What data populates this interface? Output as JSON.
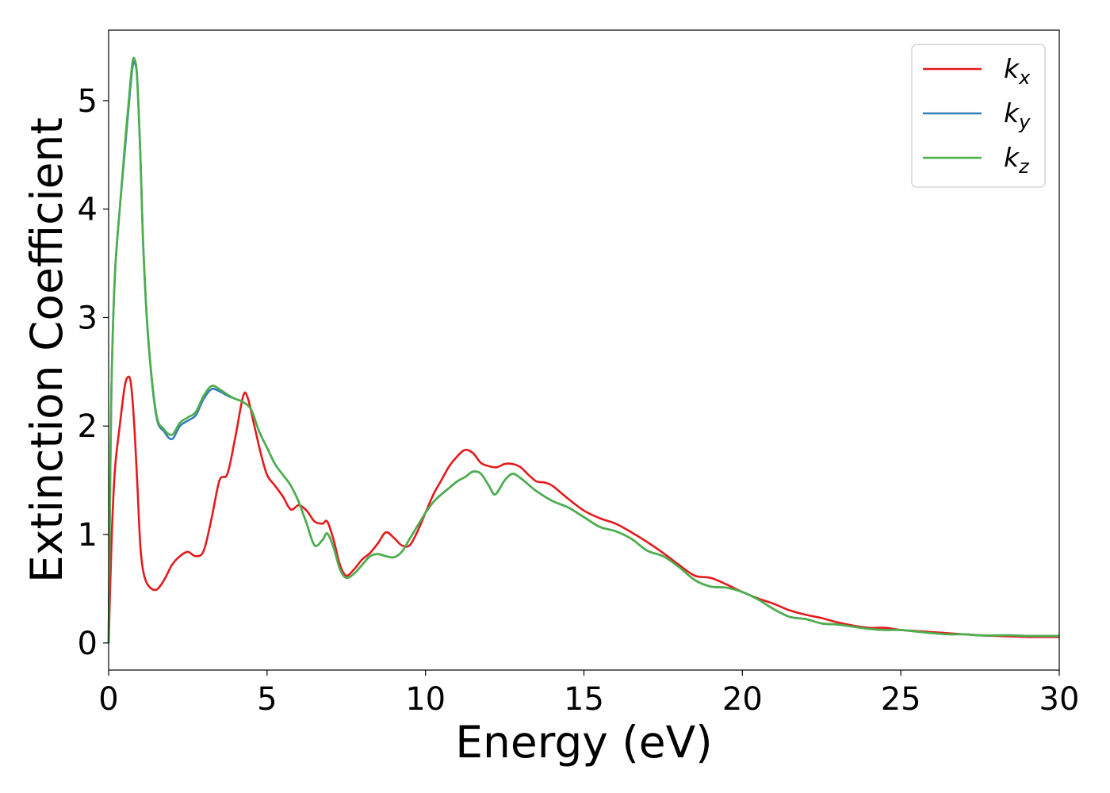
{
  "chart_data": {
    "type": "line",
    "title": "",
    "xlabel": "Energy (eV)",
    "ylabel": "Extinction Coefficient",
    "xlim": [
      0,
      30
    ],
    "ylim": [
      -0.25,
      5.65
    ],
    "xticks": [
      0,
      5,
      10,
      15,
      20,
      25,
      30
    ],
    "yticks": [
      0,
      1,
      2,
      3,
      4,
      5
    ],
    "grid": false,
    "legend_position": "top-right",
    "series": [
      {
        "name": "k",
        "subscript": "x",
        "color": "#e41a1c",
        "points": [
          [
            0,
            0
          ],
          [
            0.1,
            1.0
          ],
          [
            0.2,
            1.6
          ],
          [
            0.35,
            2.0
          ],
          [
            0.5,
            2.35
          ],
          [
            0.6,
            2.45
          ],
          [
            0.7,
            2.4
          ],
          [
            0.8,
            2.05
          ],
          [
            0.9,
            1.5
          ],
          [
            1.0,
            0.9
          ],
          [
            1.1,
            0.65
          ],
          [
            1.25,
            0.53
          ],
          [
            1.5,
            0.49
          ],
          [
            1.75,
            0.58
          ],
          [
            2.0,
            0.72
          ],
          [
            2.25,
            0.8
          ],
          [
            2.5,
            0.84
          ],
          [
            2.75,
            0.8
          ],
          [
            3.0,
            0.85
          ],
          [
            3.25,
            1.15
          ],
          [
            3.5,
            1.5
          ],
          [
            3.75,
            1.56
          ],
          [
            4.0,
            1.9
          ],
          [
            4.25,
            2.28
          ],
          [
            4.4,
            2.25
          ],
          [
            4.6,
            2.0
          ],
          [
            4.8,
            1.75
          ],
          [
            5.0,
            1.55
          ],
          [
            5.25,
            1.45
          ],
          [
            5.5,
            1.35
          ],
          [
            5.75,
            1.23
          ],
          [
            6.0,
            1.27
          ],
          [
            6.25,
            1.22
          ],
          [
            6.5,
            1.12
          ],
          [
            6.75,
            1.1
          ],
          [
            6.9,
            1.12
          ],
          [
            7.1,
            0.95
          ],
          [
            7.3,
            0.72
          ],
          [
            7.5,
            0.62
          ],
          [
            7.75,
            0.68
          ],
          [
            8.0,
            0.77
          ],
          [
            8.25,
            0.83
          ],
          [
            8.5,
            0.92
          ],
          [
            8.75,
            1.02
          ],
          [
            9.0,
            0.97
          ],
          [
            9.25,
            0.9
          ],
          [
            9.5,
            0.9
          ],
          [
            9.75,
            1.03
          ],
          [
            10.0,
            1.2
          ],
          [
            10.25,
            1.37
          ],
          [
            10.5,
            1.5
          ],
          [
            10.75,
            1.63
          ],
          [
            11.0,
            1.72
          ],
          [
            11.25,
            1.78
          ],
          [
            11.5,
            1.75
          ],
          [
            11.75,
            1.66
          ],
          [
            12.0,
            1.63
          ],
          [
            12.25,
            1.62
          ],
          [
            12.5,
            1.65
          ],
          [
            12.75,
            1.65
          ],
          [
            13.0,
            1.62
          ],
          [
            13.25,
            1.55
          ],
          [
            13.5,
            1.49
          ],
          [
            13.75,
            1.48
          ],
          [
            14.0,
            1.45
          ],
          [
            14.5,
            1.33
          ],
          [
            15.0,
            1.22
          ],
          [
            15.5,
            1.15
          ],
          [
            16.0,
            1.1
          ],
          [
            16.5,
            1.02
          ],
          [
            17.0,
            0.93
          ],
          [
            17.5,
            0.83
          ],
          [
            18.0,
            0.72
          ],
          [
            18.5,
            0.62
          ],
          [
            19.0,
            0.6
          ],
          [
            19.5,
            0.54
          ],
          [
            20.0,
            0.47
          ],
          [
            20.5,
            0.41
          ],
          [
            21.0,
            0.36
          ],
          [
            21.5,
            0.3
          ],
          [
            22.0,
            0.26
          ],
          [
            22.5,
            0.23
          ],
          [
            23.0,
            0.19
          ],
          [
            23.5,
            0.16
          ],
          [
            24.0,
            0.14
          ],
          [
            24.5,
            0.14
          ],
          [
            25.0,
            0.12
          ],
          [
            25.5,
            0.11
          ],
          [
            26.0,
            0.1
          ],
          [
            26.5,
            0.09
          ],
          [
            27.0,
            0.08
          ],
          [
            27.5,
            0.07
          ],
          [
            28.0,
            0.065
          ],
          [
            28.5,
            0.06
          ],
          [
            29.0,
            0.055
          ],
          [
            29.5,
            0.055
          ],
          [
            30.0,
            0.055
          ]
        ]
      },
      {
        "name": "k",
        "subscript": "y",
        "color": "#377eb8",
        "points": [
          [
            0,
            0
          ],
          [
            0.05,
            1.5
          ],
          [
            0.1,
            2.5
          ],
          [
            0.2,
            3.4
          ],
          [
            0.35,
            4.0
          ],
          [
            0.5,
            4.5
          ],
          [
            0.65,
            5.0
          ],
          [
            0.75,
            5.3
          ],
          [
            0.82,
            5.35
          ],
          [
            0.9,
            5.2
          ],
          [
            1.0,
            4.5
          ],
          [
            1.1,
            3.6
          ],
          [
            1.25,
            2.8
          ],
          [
            1.5,
            2.1
          ],
          [
            1.75,
            1.95
          ],
          [
            2.0,
            1.88
          ],
          [
            2.25,
            2.0
          ],
          [
            2.5,
            2.05
          ],
          [
            2.75,
            2.1
          ],
          [
            3.0,
            2.25
          ],
          [
            3.25,
            2.34
          ],
          [
            3.5,
            2.32
          ],
          [
            3.75,
            2.28
          ],
          [
            4.0,
            2.25
          ],
          [
            4.25,
            2.22
          ],
          [
            4.5,
            2.15
          ],
          [
            4.75,
            1.95
          ],
          [
            5.0,
            1.8
          ],
          [
            5.25,
            1.65
          ],
          [
            5.5,
            1.55
          ],
          [
            5.75,
            1.45
          ],
          [
            6.0,
            1.3
          ],
          [
            6.25,
            1.1
          ],
          [
            6.5,
            0.9
          ],
          [
            6.75,
            0.95
          ],
          [
            6.9,
            1.01
          ],
          [
            7.1,
            0.88
          ],
          [
            7.3,
            0.68
          ],
          [
            7.5,
            0.6
          ],
          [
            7.75,
            0.64
          ],
          [
            8.0,
            0.72
          ],
          [
            8.25,
            0.8
          ],
          [
            8.5,
            0.82
          ],
          [
            8.75,
            0.8
          ],
          [
            9.0,
            0.79
          ],
          [
            9.25,
            0.84
          ],
          [
            9.5,
            0.96
          ],
          [
            9.75,
            1.08
          ],
          [
            10.0,
            1.2
          ],
          [
            10.25,
            1.3
          ],
          [
            10.5,
            1.37
          ],
          [
            10.75,
            1.43
          ],
          [
            11.0,
            1.49
          ],
          [
            11.25,
            1.53
          ],
          [
            11.5,
            1.58
          ],
          [
            11.75,
            1.56
          ],
          [
            12.0,
            1.45
          ],
          [
            12.2,
            1.37
          ],
          [
            12.5,
            1.5
          ],
          [
            12.75,
            1.56
          ],
          [
            13.0,
            1.52
          ],
          [
            13.25,
            1.46
          ],
          [
            13.5,
            1.4
          ],
          [
            14.0,
            1.31
          ],
          [
            14.5,
            1.25
          ],
          [
            15.0,
            1.16
          ],
          [
            15.5,
            1.07
          ],
          [
            16.0,
            1.03
          ],
          [
            16.5,
            0.96
          ],
          [
            17.0,
            0.85
          ],
          [
            17.5,
            0.8
          ],
          [
            18.0,
            0.7
          ],
          [
            18.5,
            0.58
          ],
          [
            19.0,
            0.52
          ],
          [
            19.5,
            0.51
          ],
          [
            20.0,
            0.47
          ],
          [
            20.5,
            0.4
          ],
          [
            21.0,
            0.31
          ],
          [
            21.5,
            0.24
          ],
          [
            22.0,
            0.22
          ],
          [
            22.5,
            0.18
          ],
          [
            23.0,
            0.17
          ],
          [
            23.5,
            0.15
          ],
          [
            24.0,
            0.13
          ],
          [
            24.5,
            0.12
          ],
          [
            25.0,
            0.12
          ],
          [
            25.5,
            0.105
          ],
          [
            26.0,
            0.09
          ],
          [
            26.5,
            0.08
          ],
          [
            27.0,
            0.08
          ],
          [
            27.5,
            0.07
          ],
          [
            28.0,
            0.07
          ],
          [
            28.5,
            0.07
          ],
          [
            29.0,
            0.065
          ],
          [
            29.5,
            0.065
          ],
          [
            30.0,
            0.065
          ]
        ]
      },
      {
        "name": "k",
        "subscript": "z",
        "color": "#4daf4a",
        "points": [
          [
            0,
            0
          ],
          [
            0.05,
            1.5
          ],
          [
            0.1,
            2.5
          ],
          [
            0.2,
            3.4
          ],
          [
            0.35,
            4.0
          ],
          [
            0.5,
            4.55
          ],
          [
            0.65,
            5.05
          ],
          [
            0.75,
            5.35
          ],
          [
            0.82,
            5.38
          ],
          [
            0.9,
            5.22
          ],
          [
            1.0,
            4.52
          ],
          [
            1.1,
            3.62
          ],
          [
            1.25,
            2.82
          ],
          [
            1.5,
            2.12
          ],
          [
            1.75,
            1.97
          ],
          [
            2.0,
            1.92
          ],
          [
            2.25,
            2.03
          ],
          [
            2.5,
            2.08
          ],
          [
            2.75,
            2.13
          ],
          [
            3.0,
            2.28
          ],
          [
            3.25,
            2.37
          ],
          [
            3.5,
            2.34
          ],
          [
            3.75,
            2.29
          ],
          [
            4.0,
            2.25
          ],
          [
            4.25,
            2.22
          ],
          [
            4.5,
            2.15
          ],
          [
            4.75,
            1.95
          ],
          [
            5.0,
            1.8
          ],
          [
            5.25,
            1.65
          ],
          [
            5.5,
            1.55
          ],
          [
            5.75,
            1.45
          ],
          [
            6.0,
            1.3
          ],
          [
            6.25,
            1.1
          ],
          [
            6.5,
            0.9
          ],
          [
            6.75,
            0.95
          ],
          [
            6.9,
            1.01
          ],
          [
            7.1,
            0.88
          ],
          [
            7.3,
            0.68
          ],
          [
            7.5,
            0.6
          ],
          [
            7.75,
            0.64
          ],
          [
            8.0,
            0.72
          ],
          [
            8.25,
            0.8
          ],
          [
            8.5,
            0.82
          ],
          [
            8.75,
            0.8
          ],
          [
            9.0,
            0.79
          ],
          [
            9.25,
            0.84
          ],
          [
            9.5,
            0.96
          ],
          [
            9.75,
            1.08
          ],
          [
            10.0,
            1.2
          ],
          [
            10.25,
            1.3
          ],
          [
            10.5,
            1.37
          ],
          [
            10.75,
            1.43
          ],
          [
            11.0,
            1.49
          ],
          [
            11.25,
            1.53
          ],
          [
            11.5,
            1.58
          ],
          [
            11.75,
            1.56
          ],
          [
            12.0,
            1.45
          ],
          [
            12.2,
            1.37
          ],
          [
            12.5,
            1.5
          ],
          [
            12.75,
            1.56
          ],
          [
            13.0,
            1.52
          ],
          [
            13.25,
            1.46
          ],
          [
            13.5,
            1.4
          ],
          [
            14.0,
            1.31
          ],
          [
            14.5,
            1.25
          ],
          [
            15.0,
            1.16
          ],
          [
            15.5,
            1.07
          ],
          [
            16.0,
            1.03
          ],
          [
            16.5,
            0.96
          ],
          [
            17.0,
            0.85
          ],
          [
            17.5,
            0.8
          ],
          [
            18.0,
            0.7
          ],
          [
            18.5,
            0.58
          ],
          [
            19.0,
            0.52
          ],
          [
            19.5,
            0.51
          ],
          [
            20.0,
            0.47
          ],
          [
            20.5,
            0.4
          ],
          [
            21.0,
            0.31
          ],
          [
            21.5,
            0.24
          ],
          [
            22.0,
            0.22
          ],
          [
            22.5,
            0.18
          ],
          [
            23.0,
            0.17
          ],
          [
            23.5,
            0.15
          ],
          [
            24.0,
            0.13
          ],
          [
            24.5,
            0.12
          ],
          [
            25.0,
            0.12
          ],
          [
            25.5,
            0.105
          ],
          [
            26.0,
            0.09
          ],
          [
            26.5,
            0.08
          ],
          [
            27.0,
            0.08
          ],
          [
            27.5,
            0.07
          ],
          [
            28.0,
            0.07
          ],
          [
            28.5,
            0.07
          ],
          [
            29.0,
            0.065
          ],
          [
            29.5,
            0.065
          ],
          [
            30.0,
            0.065
          ]
        ]
      }
    ]
  }
}
